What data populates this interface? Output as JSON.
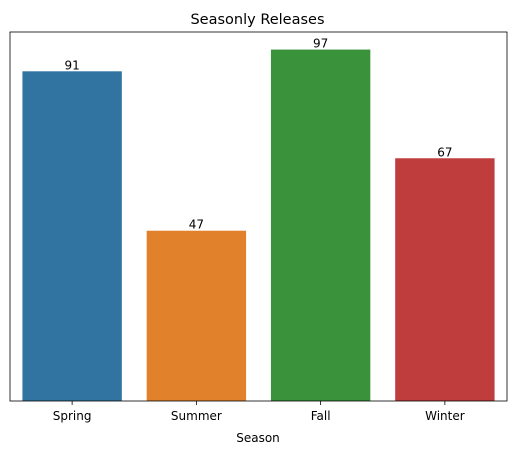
{
  "chart_data": {
    "type": "bar",
    "title": "Seasonly Releases",
    "xlabel": "Season",
    "ylabel": "",
    "categories": [
      "Spring",
      "Summer",
      "Fall",
      "Winter"
    ],
    "values": [
      91,
      47,
      97,
      67
    ],
    "colors": [
      "#3274a1",
      "#e1812c",
      "#3a923a",
      "#c03d3e"
    ],
    "ylim": [
      0,
      101.85
    ],
    "y_axis_ticks_shown": false,
    "grid": false,
    "legend": "none"
  }
}
